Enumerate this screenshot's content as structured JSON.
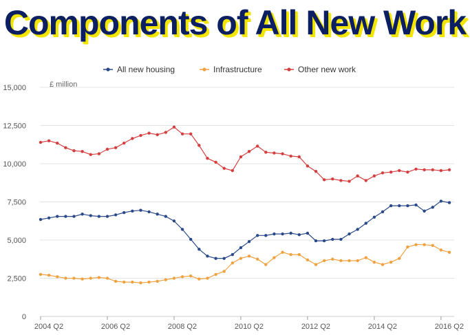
{
  "header": {
    "title": "Components of All New Work"
  },
  "chart_data": {
    "type": "line",
    "title": "Components of All New Work",
    "ylabel": "£ million",
    "xlabel": "",
    "ylim": [
      0,
      15000
    ],
    "yticks": [
      0,
      2500,
      5000,
      7500,
      10000,
      12500,
      15000
    ],
    "ytick_labels": [
      "0",
      "2,500",
      "5,000",
      "7,500",
      "10,000",
      "12,500",
      "15,000"
    ],
    "x_start": "2004 Q2",
    "xtick_labels": [
      "2004 Q2",
      "2006 Q2",
      "2008 Q2",
      "2010 Q2",
      "2012 Q2",
      "2014 Q2",
      "2016 Q2"
    ],
    "xtick_index": [
      0,
      8,
      16,
      24,
      32,
      40,
      48
    ],
    "grid": true,
    "legend_position": "top",
    "series": [
      {
        "name": "All new housing",
        "color": "#2b4a8b",
        "values": [
          6350,
          6450,
          6550,
          6550,
          6550,
          6700,
          6600,
          6550,
          6550,
          6650,
          6800,
          6900,
          6950,
          6850,
          6700,
          6550,
          6250,
          5700,
          5050,
          4400,
          3950,
          3800,
          3800,
          4050,
          4500,
          4900,
          5300,
          5300,
          5400,
          5400,
          5450,
          5350,
          5450,
          4950,
          4950,
          5050,
          5050,
          5400,
          5700,
          6100,
          6500,
          6850,
          7250,
          7250,
          7250,
          7300,
          6900,
          7150,
          7550,
          7450
        ]
      },
      {
        "name": "Infrastructure",
        "color": "#f0a140",
        "values": [
          2750,
          2700,
          2600,
          2500,
          2500,
          2450,
          2500,
          2550,
          2500,
          2300,
          2250,
          2250,
          2200,
          2250,
          2300,
          2400,
          2500,
          2600,
          2650,
          2450,
          2500,
          2750,
          2950,
          3500,
          3800,
          3950,
          3750,
          3400,
          3850,
          4200,
          4050,
          4050,
          3700,
          3400,
          3650,
          3750,
          3650,
          3650,
          3650,
          3850,
          3550,
          3400,
          3550,
          3800,
          4550,
          4700,
          4700,
          4650,
          4350,
          4200
        ]
      },
      {
        "name": "Other new work",
        "color": "#d43f3f",
        "values": [
          11400,
          11500,
          11350,
          11050,
          10850,
          10800,
          10600,
          10650,
          10950,
          11050,
          11350,
          11650,
          11850,
          12000,
          11900,
          12050,
          12400,
          11950,
          11950,
          11200,
          10350,
          10100,
          9700,
          9550,
          10450,
          10800,
          11150,
          10750,
          10700,
          10650,
          10500,
          10450,
          9850,
          9500,
          8950,
          9000,
          8900,
          8850,
          9200,
          8900,
          9200,
          9400,
          9450,
          9550,
          9450,
          9650,
          9600,
          9600,
          9550,
          9600
        ]
      }
    ]
  }
}
